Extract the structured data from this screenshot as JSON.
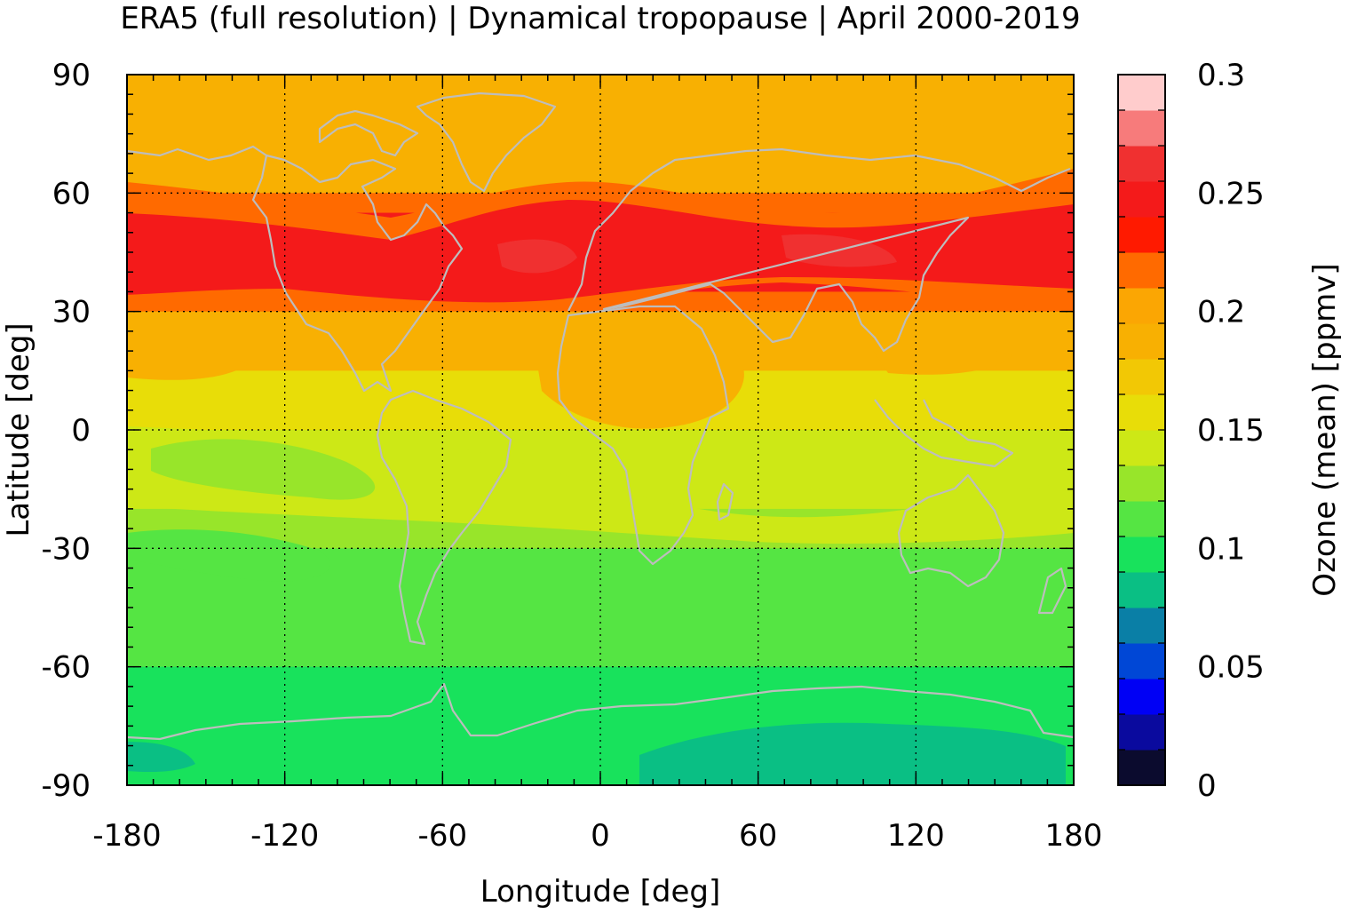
{
  "chart_data": {
    "type": "heatmap",
    "title": "ERA5 (full resolution) | Dynamical tropopause | April 2000-2019",
    "xlabel": "Longitude [deg]",
    "ylabel": "Latitude [deg]",
    "xlim": [
      -180,
      180
    ],
    "ylim": [
      -90,
      90
    ],
    "x_ticks": [
      "-180",
      "-120",
      "-60",
      "0",
      "60",
      "120",
      "180"
    ],
    "y_ticks": [
      "90",
      "60",
      "30",
      "0",
      "-30",
      "-60",
      "-90"
    ],
    "grid": true,
    "colorbar": {
      "label": "Ozone (mean) [ppmv]",
      "range": [
        0,
        0.3
      ],
      "ticks": [
        "0.3",
        "0.25",
        "0.2",
        "0.15",
        "0.1",
        "0.05",
        "0"
      ],
      "levels": [
        {
          "from": 0.0,
          "to": 0.015,
          "color": "#0b0b2e"
        },
        {
          "from": 0.015,
          "to": 0.03,
          "color": "#0a0a9e"
        },
        {
          "from": 0.03,
          "to": 0.045,
          "color": "#0000f5"
        },
        {
          "from": 0.045,
          "to": 0.06,
          "color": "#0047d6"
        },
        {
          "from": 0.06,
          "to": 0.075,
          "color": "#0a7fa6"
        },
        {
          "from": 0.075,
          "to": 0.09,
          "color": "#0abf84"
        },
        {
          "from": 0.09,
          "to": 0.105,
          "color": "#18e25c"
        },
        {
          "from": 0.105,
          "to": 0.12,
          "color": "#55e543"
        },
        {
          "from": 0.12,
          "to": 0.135,
          "color": "#98e52a"
        },
        {
          "from": 0.135,
          "to": 0.15,
          "color": "#cde816"
        },
        {
          "from": 0.15,
          "to": 0.165,
          "color": "#e8dd08"
        },
        {
          "from": 0.165,
          "to": 0.18,
          "color": "#f2c805"
        },
        {
          "from": 0.18,
          "to": 0.195,
          "color": "#f8b002"
        },
        {
          "from": 0.195,
          "to": 0.21,
          "color": "#fba603"
        },
        {
          "from": 0.21,
          "to": 0.225,
          "color": "#ff6a00"
        },
        {
          "from": 0.225,
          "to": 0.24,
          "color": "#ff1a00"
        },
        {
          "from": 0.24,
          "to": 0.255,
          "color": "#f41a1a"
        },
        {
          "from": 0.255,
          "to": 0.27,
          "color": "#f03030"
        },
        {
          "from": 0.27,
          "to": 0.285,
          "color": "#f77b7b"
        },
        {
          "from": 0.285,
          "to": 0.3,
          "color": "#ffcccc"
        }
      ]
    },
    "zonal_bands": [
      {
        "lat_from": 90,
        "lat_to": 60,
        "value": 0.19
      },
      {
        "lat_from": 60,
        "lat_to": 55,
        "value": 0.215
      },
      {
        "lat_from": 55,
        "lat_to": 35,
        "value": 0.24
      },
      {
        "lat_from": 35,
        "lat_to": 30,
        "value": 0.215
      },
      {
        "lat_from": 30,
        "lat_to": 15,
        "value": 0.19
      },
      {
        "lat_from": 15,
        "lat_to": 0,
        "value": 0.16
      },
      {
        "lat_from": 0,
        "lat_to": -20,
        "value": 0.14
      },
      {
        "lat_from": -20,
        "lat_to": -30,
        "value": 0.13
      },
      {
        "lat_from": -30,
        "lat_to": -60,
        "value": 0.11
      },
      {
        "lat_from": -60,
        "lat_to": -80,
        "value": 0.1
      },
      {
        "lat_from": -80,
        "lat_to": -90,
        "value": 0.085
      }
    ],
    "colors": {
      "coastline": "#bdbdbd",
      "grid": "#000000"
    }
  }
}
